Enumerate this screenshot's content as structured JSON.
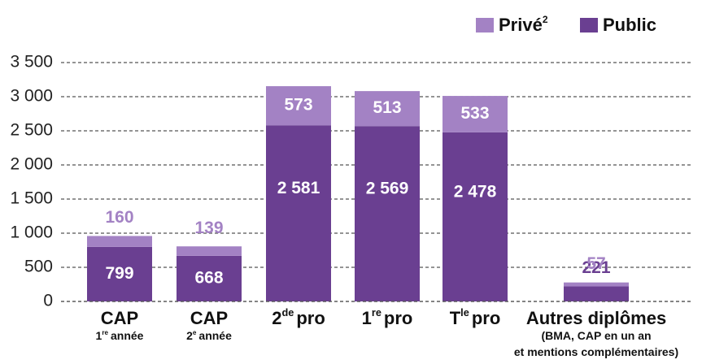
{
  "chart_data": {
    "type": "stacked-bar",
    "categories": [
      [
        "CAP"
      ],
      [
        "CAP"
      ],
      [
        "2",
        "de",
        "pro"
      ],
      [
        "1",
        "re",
        "pro"
      ],
      [
        "T",
        "le",
        "pro"
      ],
      [
        "Autres diplômes"
      ]
    ],
    "category_notes": [
      [
        [
          "1",
          "re",
          "année"
        ]
      ],
      [
        [
          "2",
          "e",
          "année"
        ]
      ],
      null,
      null,
      null,
      [
        [
          "(BMA, CAP en un an"
        ],
        [
          "et mentions complémentaires)"
        ]
      ]
    ],
    "series": [
      {
        "name": "Public",
        "color": "#6a3f91",
        "values": [
          799,
          668,
          2581,
          2569,
          2478,
          221
        ],
        "value_labels": [
          "799",
          "668",
          "2 581",
          "2 569",
          "2 478",
          "221"
        ]
      },
      {
        "name": "Privé",
        "footnote": "2",
        "color": "#a382c4",
        "values": [
          160,
          139,
          573,
          513,
          533,
          57
        ]
      }
    ],
    "ylim": [
      0,
      3500
    ],
    "yticks": [
      0,
      500,
      {
        "value": 1000,
        "label": "1 000"
      },
      {
        "value": 1500,
        "label": "1 500"
      },
      {
        "value": 2000,
        "label": "2 000"
      },
      {
        "value": 2500,
        "label": "2 500"
      },
      {
        "value": 3000,
        "label": "3 000"
      },
      {
        "value": 3500,
        "label": "3 500"
      }
    ],
    "grid": true,
    "legend": "top-right"
  }
}
